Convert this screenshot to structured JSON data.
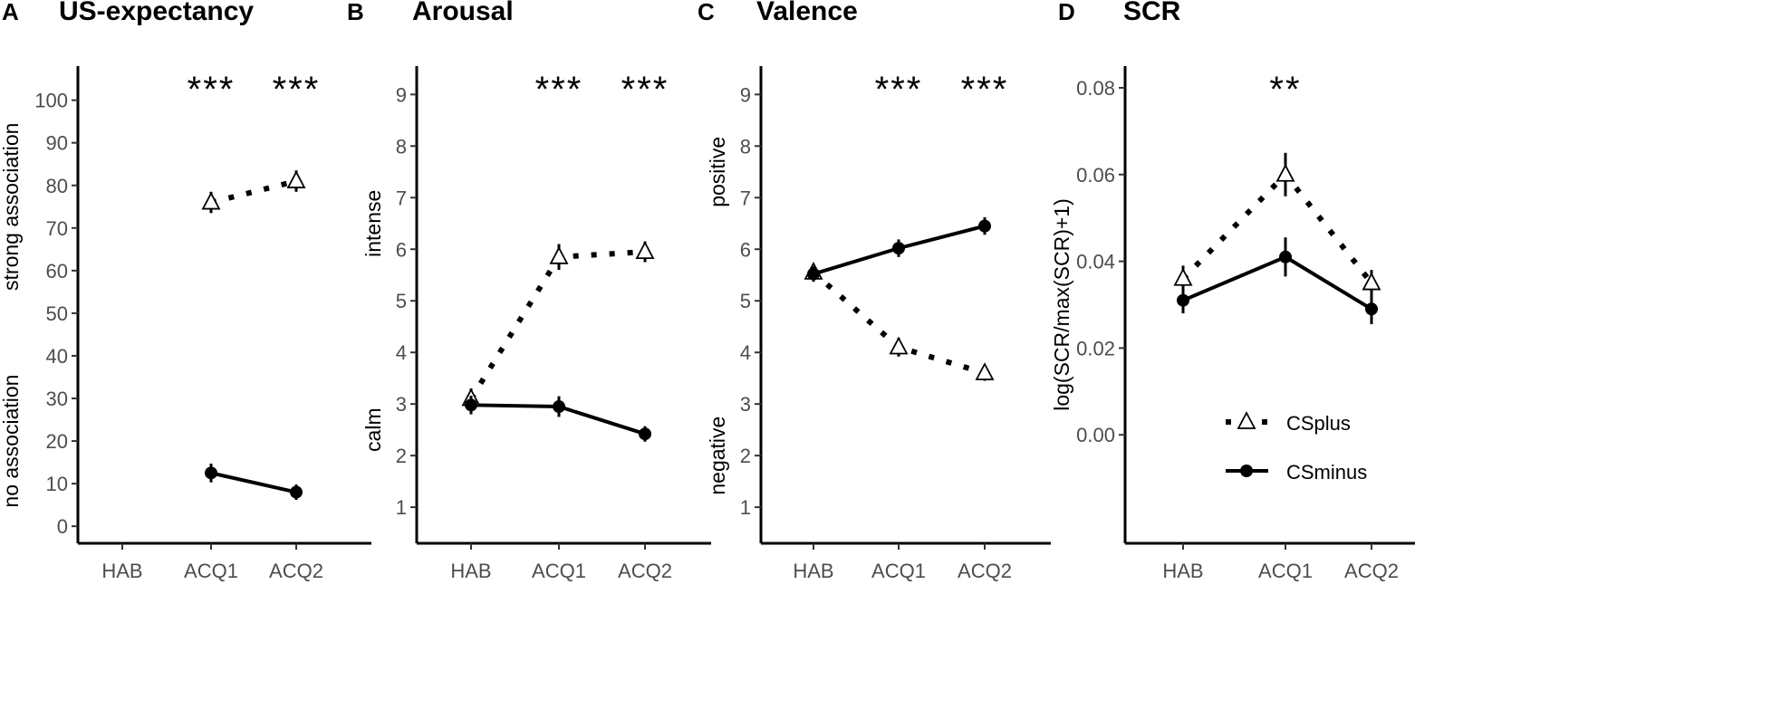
{
  "series_names": {
    "plus": "CSplus",
    "minus": "CSminus"
  },
  "colors": {
    "ink": "#000000",
    "tick_text": "#4d4d4d",
    "marker_fill_plus": "#ffffff"
  },
  "legend": {
    "items": [
      "CSplus",
      "CSminus"
    ],
    "position": "bottom-right of panel D"
  },
  "chart_data": [
    {
      "id": "A",
      "letter": "A",
      "type": "line",
      "title": "US-expectancy",
      "categories": [
        "HAB",
        "ACQ1",
        "ACQ2"
      ],
      "ylim": [
        -4,
        108
      ],
      "yticks": [
        0,
        10,
        20,
        30,
        40,
        50,
        60,
        70,
        80,
        90,
        100
      ],
      "ytick_labels": [
        "0",
        "10",
        "20",
        "30",
        "40",
        "50",
        "60",
        "70",
        "80",
        "90",
        "100"
      ],
      "ylabel_low": {
        "text": "no association",
        "value": 20
      },
      "ylabel_high": {
        "text": "strong association",
        "value": 75
      },
      "significance": [
        {
          "category": "ACQ1",
          "label": "***"
        },
        {
          "category": "ACQ2",
          "label": "***"
        }
      ],
      "series": [
        {
          "name": "CSplus",
          "style": "dotted",
          "marker": "triangle",
          "values": [
            null,
            76,
            81
          ],
          "errors": [
            null,
            2.5,
            2.5
          ]
        },
        {
          "name": "CSminus",
          "style": "solid",
          "marker": "circle",
          "values": [
            null,
            12.5,
            8
          ],
          "errors": [
            null,
            2.2,
            1.8
          ]
        }
      ]
    },
    {
      "id": "B",
      "letter": "B",
      "type": "line",
      "title": "Arousal",
      "categories": [
        "HAB",
        "ACQ1",
        "ACQ2"
      ],
      "ylim": [
        0.3,
        9.55
      ],
      "yticks": [
        1,
        2,
        3,
        4,
        5,
        6,
        7,
        8,
        9
      ],
      "ytick_labels": [
        "1",
        "2",
        "3",
        "4",
        "5",
        "6",
        "7",
        "8",
        "9"
      ],
      "ylabel_low": {
        "text": "calm",
        "value": 2.5
      },
      "ylabel_high": {
        "text": "intense",
        "value": 6.5
      },
      "significance": [
        {
          "category": "ACQ1",
          "label": "***"
        },
        {
          "category": "ACQ2",
          "label": "***"
        }
      ],
      "series": [
        {
          "name": "CSplus",
          "style": "dotted",
          "marker": "triangle",
          "values": [
            3.1,
            5.85,
            5.95
          ],
          "errors": [
            0.2,
            0.25,
            0.2
          ]
        },
        {
          "name": "CSminus",
          "style": "solid",
          "marker": "circle",
          "values": [
            2.98,
            2.95,
            2.42
          ],
          "errors": [
            0.18,
            0.2,
            0.15
          ]
        }
      ]
    },
    {
      "id": "C",
      "letter": "C",
      "type": "line",
      "title": "Valence",
      "categories": [
        "HAB",
        "ACQ1",
        "ACQ2"
      ],
      "ylim": [
        0.3,
        9.55
      ],
      "yticks": [
        1,
        2,
        3,
        4,
        5,
        6,
        7,
        8,
        9
      ],
      "ytick_labels": [
        "1",
        "2",
        "3",
        "4",
        "5",
        "6",
        "7",
        "8",
        "9"
      ],
      "ylabel_low": {
        "text": "negative",
        "value": 2
      },
      "ylabel_high": {
        "text": "positive",
        "value": 7.5
      },
      "significance": [
        {
          "category": "ACQ1",
          "label": "***"
        },
        {
          "category": "ACQ2",
          "label": "***"
        }
      ],
      "series": [
        {
          "name": "CSplus",
          "style": "dotted",
          "marker": "triangle",
          "values": [
            5.55,
            4.1,
            3.6
          ],
          "errors": [
            0.15,
            0.18,
            0.15
          ]
        },
        {
          "name": "CSminus",
          "style": "solid",
          "marker": "circle",
          "values": [
            5.52,
            6.02,
            6.45
          ],
          "errors": [
            0.15,
            0.17,
            0.17
          ]
        }
      ]
    },
    {
      "id": "D",
      "letter": "D",
      "type": "line",
      "title": "SCR",
      "categories": [
        "HAB",
        "ACQ1",
        "ACQ2"
      ],
      "ylim": [
        -0.025,
        0.085
      ],
      "yticks": [
        0,
        0.02,
        0.04,
        0.06,
        0.08
      ],
      "ytick_labels": [
        "0.00",
        "0.02",
        "0.04",
        "0.06",
        "0.08"
      ],
      "ylabel": "log(SCR/max(SCR)+1)",
      "significance": [
        {
          "category": "ACQ1",
          "label": "**"
        }
      ],
      "series": [
        {
          "name": "CSplus",
          "style": "dotted",
          "marker": "triangle",
          "values": [
            0.036,
            0.06,
            0.035
          ],
          "errors": [
            0.003,
            0.005,
            0.003
          ]
        },
        {
          "name": "CSminus",
          "style": "solid",
          "marker": "circle",
          "values": [
            0.031,
            0.041,
            0.029
          ],
          "errors": [
            0.003,
            0.0045,
            0.0035
          ]
        }
      ]
    }
  ]
}
